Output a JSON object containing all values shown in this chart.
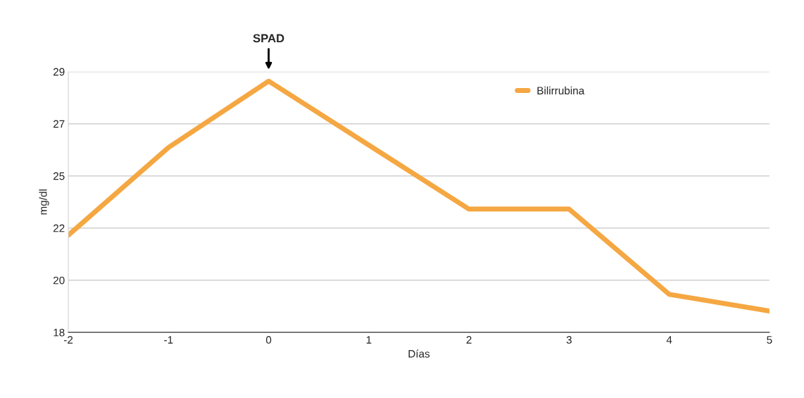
{
  "chart_data": {
    "type": "line",
    "xlabel": "Días",
    "ylabel": "mg/dl",
    "x": [
      -2,
      -1,
      0,
      1,
      2,
      3,
      4,
      5
    ],
    "series": [
      {
        "name": "Bilirrubina",
        "color": "#f5a742",
        "values": [
          22.1,
          25.8,
          28.6,
          25.9,
          23.2,
          23.2,
          19.6,
          18.9
        ]
      }
    ],
    "xlim": [
      -2,
      5
    ],
    "xticks": [
      -2,
      -1,
      0,
      1,
      2,
      3,
      4,
      5
    ],
    "ylim": [
      18,
      29
    ],
    "yticks": [
      18,
      {
        "value": 20.2,
        "label": "20"
      },
      {
        "value": 22.4,
        "label": "22"
      },
      {
        "value": 24.6,
        "label": "25"
      },
      {
        "value": 26.8,
        "label": "27"
      },
      29
    ],
    "grid": "y",
    "legend": "top right",
    "marker": "none",
    "line_style": "solid",
    "annotations": [
      "SPAD"
    ]
  }
}
